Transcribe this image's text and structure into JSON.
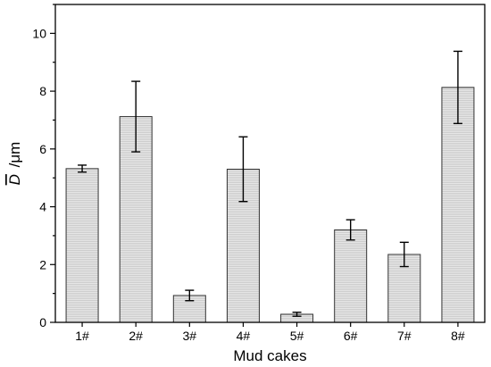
{
  "chart_data": {
    "type": "bar",
    "title": "",
    "xlabel": "Mud cakes",
    "ylabel_symbol": "D",
    "ylabel_unit": "/μm",
    "categories": [
      "1#",
      "2#",
      "3#",
      "4#",
      "5#",
      "6#",
      "7#",
      "8#"
    ],
    "values": [
      5.32,
      7.12,
      0.93,
      5.3,
      0.28,
      3.2,
      2.35,
      8.13
    ],
    "error": [
      0.12,
      1.22,
      0.18,
      1.12,
      0.07,
      0.35,
      0.42,
      1.25
    ],
    "ylim": [
      0,
      11
    ],
    "yticks": [
      0,
      2,
      4,
      6,
      8,
      10
    ],
    "grid": false,
    "bar_fill": "#e6e6e6",
    "bar_stroke": "#333333"
  }
}
